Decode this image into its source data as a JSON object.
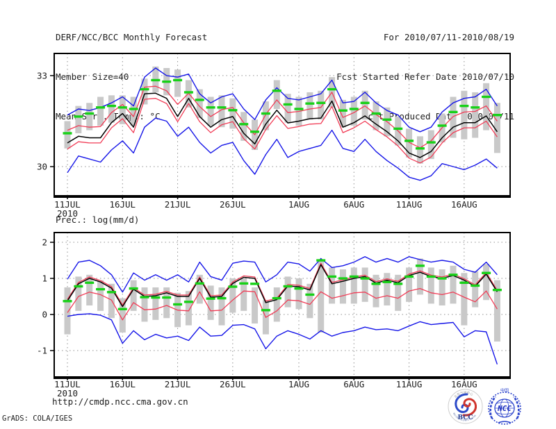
{
  "header": {
    "title": "DERF/NCC/BCC Monthly Forecast",
    "member_size": "Member Size=40",
    "panel1_label": "Mean Surf. Temp.: °C",
    "for_range": "For 2010/07/11-2010/08/19",
    "refer_date": "Fcst Started Refer Date 2010/07/10",
    "produced_date": "Fcst Produced Date 2010/07/11"
  },
  "panel2_label": "Prec.: log(mm/d)",
  "footer": {
    "url": "http://cmdp.ncc.cma.gov.cn",
    "credit": "GrADS: COLA/IGES",
    "logos": [
      {
        "name": "BCC",
        "text": "BCC",
        "arc_text": "BEIJING CLIMATE CENTER",
        "cn_text": "北京气候中心"
      },
      {
        "name": "NCC",
        "text": "NCC",
        "cn_text": "中国"
      }
    ]
  },
  "colors": {
    "blue": "#1515e8",
    "red": "#f13b55",
    "black": "#000000",
    "green": "#17d117",
    "bar_gray": "#c9c9c9",
    "grid": "#909090",
    "frame": "#000000",
    "text": "#1c1c1c",
    "logo_blue": "#2b43cc",
    "logo_red": "#d0342c"
  },
  "chart_data": [
    {
      "type": "line",
      "title": "Mean Surf. Temp.: °C",
      "ylabel": "",
      "xlabel": "",
      "x_year_label": "2010",
      "n_points": 40,
      "x_tick_labels": [
        "11JUL",
        "16JUL",
        "21JUL",
        "26JUL",
        "1AUG",
        "6AUG",
        "11AUG",
        "16AUG"
      ],
      "x_tick_indices": [
        0,
        5,
        10,
        15,
        21,
        26,
        31,
        36
      ],
      "y_ticks": [
        33,
        30
      ],
      "ylim": [
        29.04,
        33.73
      ],
      "grid": "dotted",
      "series": [
        {
          "name": "ensemble-max",
          "color": "#1515e8",
          "width": 1.4,
          "values": [
            31.7,
            31.9,
            31.85,
            31.95,
            32.1,
            32.3,
            32.0,
            32.95,
            33.25,
            33.0,
            32.95,
            33.05,
            32.4,
            32.1,
            32.3,
            32.4,
            31.9,
            31.55,
            32.2,
            32.6,
            32.25,
            32.2,
            32.3,
            32.4,
            32.85,
            32.1,
            32.15,
            32.45,
            32.1,
            31.85,
            31.7,
            31.3,
            31.15,
            31.3,
            31.8,
            32.1,
            32.25,
            32.3,
            32.55,
            32.0
          ]
        },
        {
          "name": "upper-spread",
          "color": "#f13b55",
          "width": 1.3,
          "values": [
            31.2,
            31.35,
            31.3,
            31.32,
            31.78,
            32.05,
            31.65,
            32.62,
            32.65,
            32.5,
            32.05,
            32.42,
            31.98,
            31.65,
            31.88,
            31.95,
            31.45,
            31.05,
            31.72,
            32.2,
            31.78,
            31.82,
            31.9,
            31.95,
            32.45,
            31.62,
            31.78,
            32.0,
            31.72,
            31.48,
            31.18,
            30.8,
            30.62,
            30.85,
            31.28,
            31.65,
            31.8,
            31.82,
            32.0,
            31.5
          ]
        },
        {
          "name": "lower-spread",
          "color": "#f13b55",
          "width": 1.3,
          "values": [
            30.58,
            30.82,
            30.78,
            30.78,
            31.28,
            31.58,
            31.12,
            32.22,
            32.25,
            32.08,
            31.48,
            32.08,
            31.48,
            31.12,
            31.38,
            31.48,
            30.92,
            30.58,
            31.22,
            31.68,
            31.26,
            31.32,
            31.4,
            31.42,
            31.98,
            31.12,
            31.28,
            31.5,
            31.22,
            30.98,
            30.68,
            30.28,
            30.12,
            30.32,
            30.78,
            31.12,
            31.28,
            31.28,
            31.5,
            30.98
          ]
        },
        {
          "name": "ensemble-mean",
          "color": "#000000",
          "width": 1.5,
          "values": [
            30.78,
            31.0,
            30.95,
            30.95,
            31.45,
            31.75,
            31.3,
            32.4,
            32.42,
            32.25,
            31.65,
            32.25,
            31.65,
            31.3,
            31.55,
            31.65,
            31.1,
            30.75,
            31.4,
            31.86,
            31.44,
            31.5,
            31.58,
            31.6,
            32.16,
            31.3,
            31.45,
            31.67,
            31.4,
            31.15,
            30.85,
            30.45,
            30.3,
            30.5,
            30.95,
            31.3,
            31.45,
            31.45,
            31.67,
            31.15
          ]
        },
        {
          "name": "ensemble-min",
          "color": "#1515e8",
          "width": 1.4,
          "values": [
            29.8,
            30.35,
            30.25,
            30.15,
            30.55,
            30.85,
            30.45,
            31.3,
            31.6,
            31.5,
            31.0,
            31.3,
            30.8,
            30.45,
            30.7,
            30.8,
            30.2,
            29.75,
            30.4,
            30.9,
            30.3,
            30.5,
            30.6,
            30.7,
            31.2,
            30.6,
            30.5,
            30.9,
            30.5,
            30.2,
            29.95,
            29.65,
            29.55,
            29.7,
            30.1,
            30.0,
            29.9,
            30.05,
            30.25,
            29.95
          ]
        }
      ],
      "green_dashes": [
        31.1,
        31.65,
        31.75,
        31.95,
        32.0,
        31.95,
        31.9,
        32.55,
        32.85,
        32.8,
        32.85,
        32.45,
        32.2,
        31.95,
        31.95,
        31.86,
        31.4,
        31.15,
        31.75,
        32.5,
        32.05,
        31.9,
        32.08,
        32.1,
        32.55,
        31.85,
        31.9,
        32.1,
        31.75,
        31.55,
        31.25,
        30.85,
        30.6,
        30.8,
        31.35,
        31.8,
        32.0,
        31.95,
        32.3,
        31.7
      ],
      "bars": {
        "lo": [
          30.6,
          31.1,
          31.2,
          31.35,
          31.45,
          31.4,
          31.35,
          32.05,
          32.45,
          32.35,
          32.3,
          31.95,
          31.6,
          31.35,
          31.3,
          31.25,
          30.85,
          30.55,
          31.2,
          31.9,
          31.45,
          31.35,
          31.55,
          31.55,
          31.95,
          31.3,
          31.35,
          31.55,
          31.2,
          31.0,
          30.7,
          30.3,
          30.1,
          30.25,
          30.8,
          30.95,
          30.9,
          30.95,
          31.2,
          30.45
        ],
        "hi": [
          31.5,
          32.0,
          32.1,
          32.3,
          32.35,
          32.35,
          32.3,
          32.9,
          33.3,
          33.25,
          33.2,
          32.85,
          32.55,
          32.3,
          32.35,
          32.25,
          31.8,
          31.55,
          32.15,
          32.85,
          32.4,
          32.3,
          32.45,
          32.5,
          32.95,
          32.2,
          32.3,
          32.5,
          32.15,
          31.95,
          31.65,
          31.25,
          31.0,
          31.2,
          31.75,
          32.3,
          32.5,
          32.45,
          32.75,
          32.1
        ]
      }
    },
    {
      "type": "line",
      "title": "Prec.: log(mm/d)",
      "ylabel": "",
      "xlabel": "",
      "x_year_label": "2010",
      "n_points": 40,
      "x_tick_labels": [
        "11JUL",
        "16JUL",
        "21JUL",
        "26JUL",
        "1AUG",
        "6AUG",
        "11AUG",
        "16AUG"
      ],
      "x_tick_indices": [
        0,
        5,
        10,
        15,
        21,
        26,
        31,
        36
      ],
      "y_ticks": [
        2,
        1,
        0,
        -1
      ],
      "ylim": [
        -1.73,
        2.27
      ],
      "grid": "dotted",
      "series": [
        {
          "name": "ensemble-max",
          "color": "#1515e8",
          "width": 1.4,
          "values": [
            0.98,
            1.45,
            1.5,
            1.35,
            1.1,
            0.62,
            1.15,
            0.95,
            1.1,
            0.95,
            1.1,
            0.9,
            1.45,
            1.05,
            0.95,
            1.42,
            1.48,
            1.45,
            0.9,
            1.1,
            1.45,
            1.4,
            1.2,
            1.55,
            1.3,
            1.35,
            1.45,
            1.6,
            1.45,
            1.55,
            1.45,
            1.6,
            1.52,
            1.45,
            1.5,
            1.45,
            1.25,
            1.17,
            1.45,
            1.1
          ]
        },
        {
          "name": "upper-spread",
          "color": "#f13b55",
          "width": 1.3,
          "values": [
            0.42,
            0.89,
            1.04,
            0.94,
            0.77,
            0.26,
            0.74,
            0.54,
            0.56,
            0.64,
            0.54,
            0.54,
            1.04,
            0.52,
            0.54,
            0.9,
            1.07,
            1.04,
            0.37,
            0.45,
            0.83,
            0.81,
            0.72,
            1.42,
            0.89,
            0.96,
            1.04,
            1.09,
            0.91,
            0.99,
            0.92,
            1.12,
            1.21,
            1.09,
            1.04,
            1.12,
            0.99,
            0.82,
            1.16,
            0.67
          ]
        },
        {
          "name": "lower-spread",
          "color": "#f13b55",
          "width": 1.3,
          "values": [
            0.05,
            0.5,
            0.62,
            0.55,
            0.4,
            -0.15,
            0.33,
            0.13,
            0.15,
            0.25,
            0.12,
            0.1,
            0.63,
            0.1,
            0.12,
            0.4,
            0.65,
            0.63,
            -0.08,
            0.1,
            0.4,
            0.38,
            0.28,
            0.63,
            0.45,
            0.52,
            0.6,
            0.62,
            0.45,
            0.52,
            0.45,
            0.65,
            0.72,
            0.6,
            0.55,
            0.62,
            0.48,
            0.35,
            0.65,
            0.15
          ]
        },
        {
          "name": "ensemble-mean",
          "color": "#000000",
          "width": 1.5,
          "values": [
            0.38,
            0.85,
            1.0,
            0.9,
            0.73,
            0.22,
            0.7,
            0.5,
            0.52,
            0.6,
            0.5,
            0.5,
            1.0,
            0.48,
            0.5,
            0.86,
            1.03,
            1.0,
            0.33,
            0.41,
            0.79,
            0.77,
            0.68,
            1.38,
            0.85,
            0.92,
            1.0,
            1.05,
            0.87,
            0.95,
            0.88,
            1.08,
            1.17,
            1.05,
            1.0,
            1.08,
            0.95,
            0.78,
            1.12,
            0.63
          ]
        },
        {
          "name": "ensemble-min",
          "color": "#1515e8",
          "width": 1.4,
          "values": [
            -0.05,
            0.0,
            0.02,
            -0.02,
            -0.15,
            -0.8,
            -0.45,
            -0.7,
            -0.55,
            -0.65,
            -0.6,
            -0.72,
            -0.35,
            -0.6,
            -0.58,
            -0.3,
            -0.28,
            -0.4,
            -0.95,
            -0.6,
            -0.45,
            -0.55,
            -0.68,
            -0.45,
            -0.6,
            -0.5,
            -0.45,
            -0.35,
            -0.42,
            -0.4,
            -0.45,
            -0.32,
            -0.2,
            -0.28,
            -0.25,
            -0.22,
            -0.62,
            -0.45,
            -0.48,
            -1.38
          ]
        }
      ],
      "green_dashes": [
        0.37,
        0.78,
        0.88,
        0.7,
        0.62,
        0.15,
        0.72,
        0.48,
        0.47,
        0.47,
        0.28,
        0.35,
        0.86,
        0.44,
        0.45,
        0.77,
        0.86,
        0.85,
        0.12,
        0.45,
        0.78,
        0.72,
        0.55,
        1.5,
        1.05,
        1.0,
        1.05,
        1.0,
        0.85,
        0.9,
        0.85,
        1.05,
        1.35,
        1.05,
        1.0,
        1.1,
        0.88,
        0.8,
        1.15,
        0.68
      ],
      "bars": {
        "lo": [
          -0.55,
          0.1,
          0.25,
          0.1,
          -0.1,
          -0.5,
          0.1,
          -0.2,
          -0.15,
          -0.1,
          -0.35,
          -0.3,
          0.3,
          -0.15,
          -0.3,
          0.05,
          0.1,
          -0.25,
          -0.55,
          -0.2,
          0.2,
          0.15,
          -0.1,
          -0.5,
          0.3,
          0.3,
          0.3,
          0.35,
          0.2,
          0.25,
          0.1,
          0.35,
          0.55,
          0.3,
          0.25,
          0.3,
          -0.3,
          0.2,
          0.4,
          -0.75
        ],
        "hi": [
          0.75,
          1.05,
          1.1,
          0.95,
          0.85,
          0.45,
          0.95,
          0.75,
          0.75,
          0.75,
          0.6,
          0.65,
          1.1,
          0.8,
          0.75,
          1.0,
          1.0,
          0.75,
          0.4,
          0.75,
          1.05,
          1.0,
          0.85,
          1.5,
          1.3,
          1.25,
          1.3,
          1.3,
          1.1,
          1.15,
          1.1,
          1.3,
          1.55,
          1.3,
          1.25,
          1.35,
          1.15,
          1.2,
          1.4,
          0.95
        ]
      }
    }
  ]
}
